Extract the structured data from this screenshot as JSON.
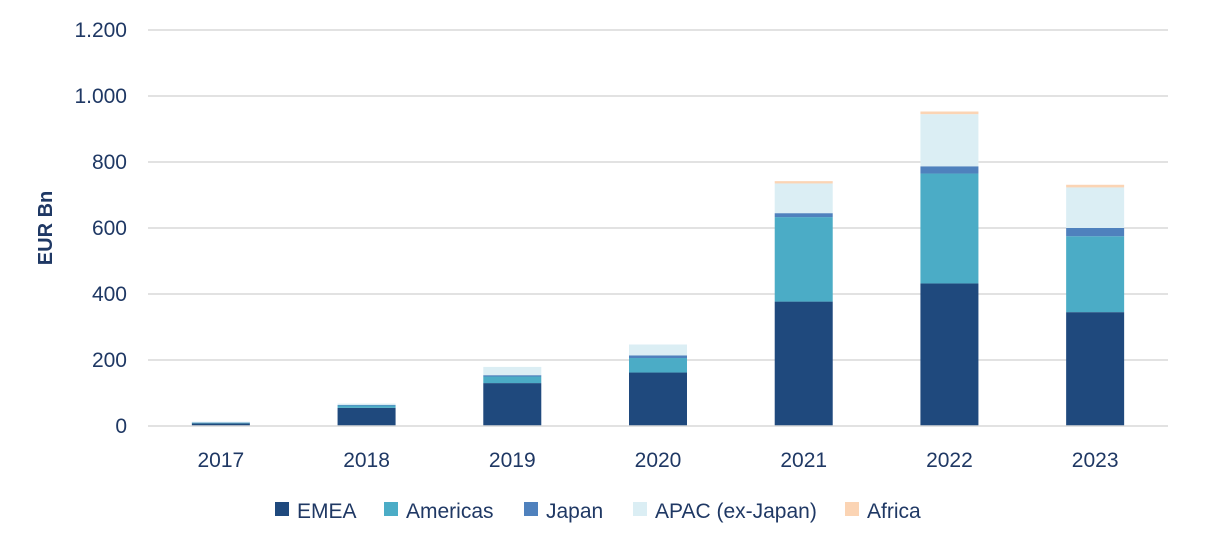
{
  "chart_data": {
    "type": "bar",
    "stacked": true,
    "title": "",
    "xlabel": "",
    "ylabel": "EUR Bn",
    "ylim": [
      0,
      1200
    ],
    "yticks": [
      0,
      200,
      400,
      600,
      800,
      1000,
      1200
    ],
    "ytick_labels": [
      "0",
      "200",
      "400",
      "600",
      "800",
      "1.000",
      "1.200"
    ],
    "grid": true,
    "legend_position": "bottom",
    "categories": [
      "2017",
      "2018",
      "2019",
      "2020",
      "2021",
      "2022",
      "2023"
    ],
    "series": [
      {
        "name": "EMEA",
        "color": "#1f497d",
        "values": [
          8,
          55,
          130,
          162,
          377,
          432,
          345
        ]
      },
      {
        "name": "Americas",
        "color": "#4bacc6",
        "values": [
          2,
          7,
          20,
          44,
          256,
          333,
          230
        ]
      },
      {
        "name": "Japan",
        "color": "#4f81bd",
        "values": [
          1,
          2,
          4,
          8,
          12,
          22,
          25
        ]
      },
      {
        "name": "APAC (ex-Japan)",
        "color": "#dbeef4",
        "values": [
          2,
          4,
          25,
          33,
          90,
          158,
          123
        ]
      },
      {
        "name": "Africa",
        "color": "#fbd4b4",
        "values": [
          0,
          0,
          0,
          0,
          7,
          8,
          8
        ]
      }
    ]
  }
}
